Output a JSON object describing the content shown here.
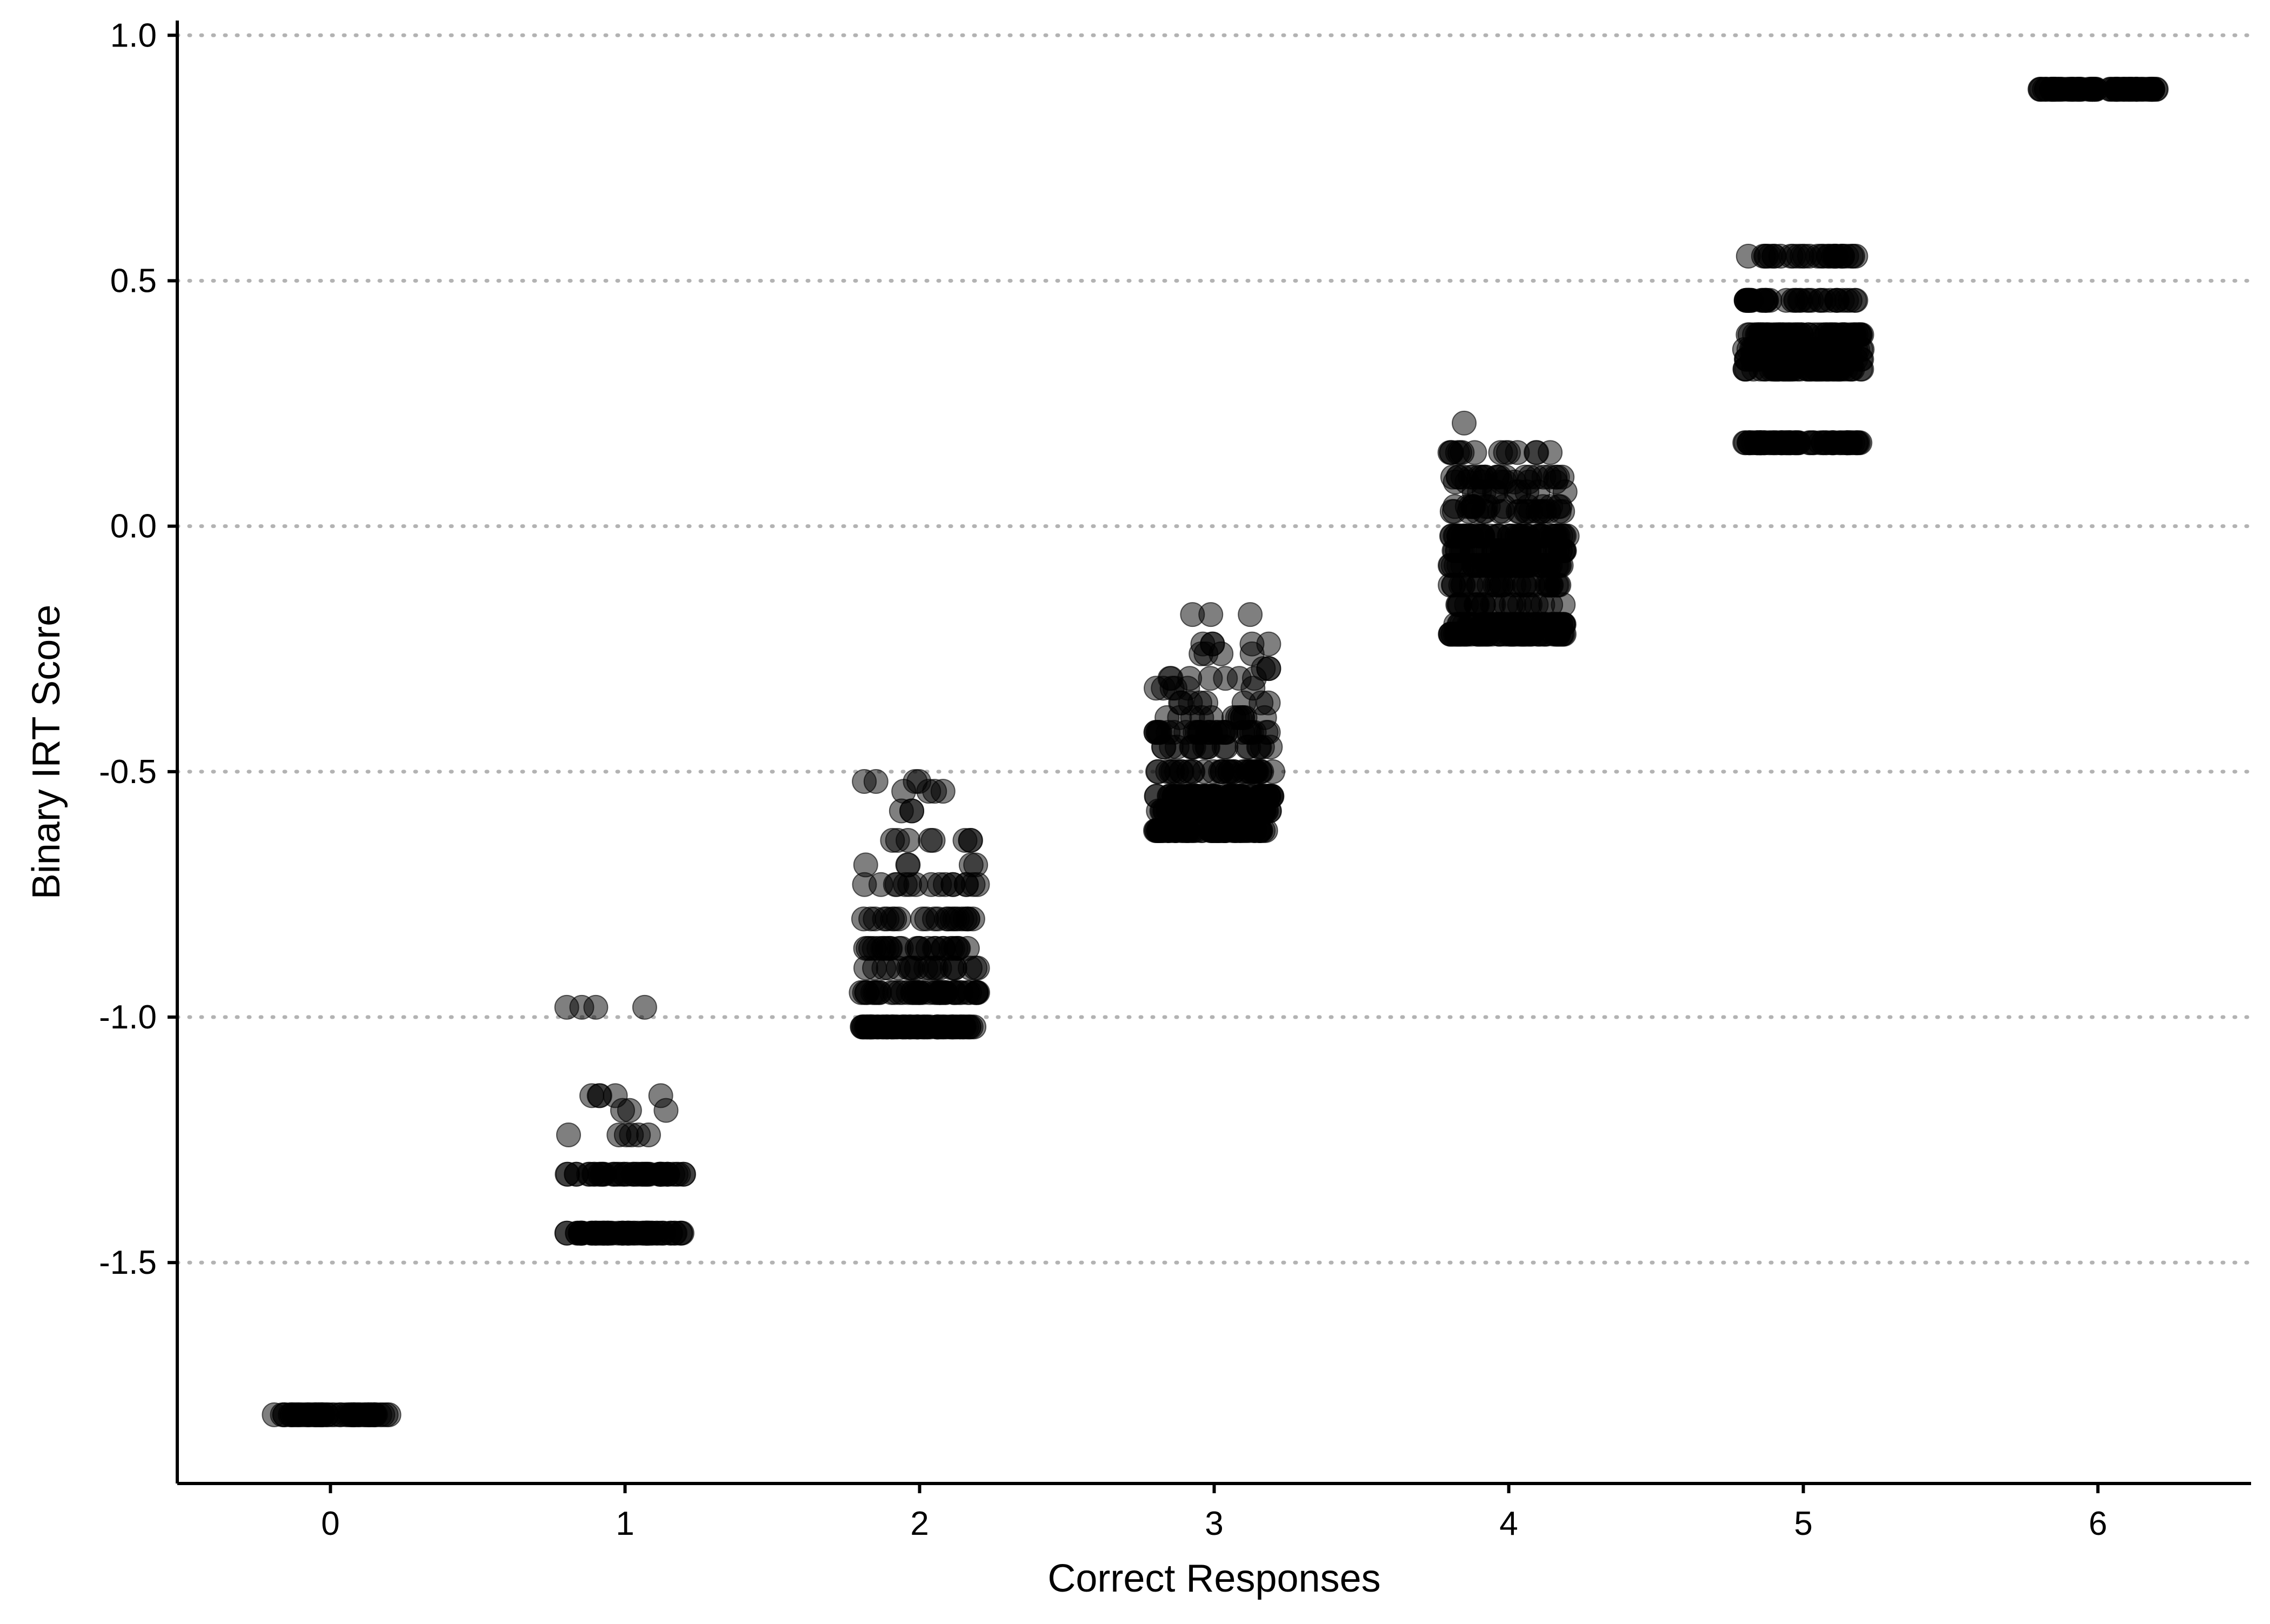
{
  "chart_data": {
    "type": "scatter",
    "title": "",
    "xlabel": "Correct Responses",
    "ylabel": "Binary IRT Score",
    "xlim": [
      -0.52,
      6.52
    ],
    "ylim": [
      -1.95,
      1.03
    ],
    "x_ticks": [
      0,
      1,
      2,
      3,
      4,
      5,
      6
    ],
    "x_tick_labels": [
      "0",
      "1",
      "2",
      "3",
      "4",
      "5",
      "6"
    ],
    "y_ticks": [
      -1.5,
      -1.0,
      -0.5,
      0.0,
      0.5,
      1.0
    ],
    "y_tick_labels": [
      "-1.5",
      "-1.0",
      "-0.5",
      "0.0",
      "0.5",
      "1.0"
    ],
    "grid": {
      "horizontal": true,
      "vertical": false,
      "style": "dotted"
    },
    "point_color": "#000000",
    "point_opacity": 0.5,
    "jitter_width": 0.2,
    "groups": [
      {
        "x": 0,
        "levels": [
          {
            "y": -1.81,
            "count": 60
          }
        ]
      },
      {
        "x": 1,
        "levels": [
          {
            "y": -0.98,
            "count": 4
          },
          {
            "y": -1.16,
            "count": 5
          },
          {
            "y": -1.19,
            "count": 3
          },
          {
            "y": -1.24,
            "count": 6
          },
          {
            "y": -1.32,
            "count": 45
          },
          {
            "y": -1.44,
            "count": 70
          }
        ]
      },
      {
        "x": 2,
        "levels": [
          {
            "y": -0.52,
            "count": 4
          },
          {
            "y": -0.54,
            "count": 4
          },
          {
            "y": -0.58,
            "count": 3
          },
          {
            "y": -0.64,
            "count": 8
          },
          {
            "y": -0.69,
            "count": 5
          },
          {
            "y": -0.73,
            "count": 16
          },
          {
            "y": -0.8,
            "count": 22
          },
          {
            "y": -0.86,
            "count": 26
          },
          {
            "y": -0.9,
            "count": 20
          },
          {
            "y": -0.95,
            "count": 45
          },
          {
            "y": -1.02,
            "count": 80
          }
        ]
      },
      {
        "x": 3,
        "levels": [
          {
            "y": -0.18,
            "count": 3
          },
          {
            "y": -0.24,
            "count": 5
          },
          {
            "y": -0.26,
            "count": 4
          },
          {
            "y": -0.29,
            "count": 3
          },
          {
            "y": -0.31,
            "count": 7
          },
          {
            "y": -0.33,
            "count": 6
          },
          {
            "y": -0.36,
            "count": 8
          },
          {
            "y": -0.39,
            "count": 12
          },
          {
            "y": -0.42,
            "count": 30
          },
          {
            "y": -0.45,
            "count": 18
          },
          {
            "y": -0.5,
            "count": 35
          },
          {
            "y": -0.55,
            "count": 70
          },
          {
            "y": -0.58,
            "count": 70
          },
          {
            "y": -0.62,
            "count": 80
          }
        ]
      },
      {
        "x": 4,
        "levels": [
          {
            "y": 0.21,
            "count": 1
          },
          {
            "y": 0.15,
            "count": 14
          },
          {
            "y": 0.1,
            "count": 22
          },
          {
            "y": 0.09,
            "count": 8
          },
          {
            "y": 0.07,
            "count": 10
          },
          {
            "y": 0.04,
            "count": 14
          },
          {
            "y": 0.03,
            "count": 20
          },
          {
            "y": -0.02,
            "count": 50
          },
          {
            "y": -0.05,
            "count": 50
          },
          {
            "y": -0.08,
            "count": 55
          },
          {
            "y": -0.12,
            "count": 30
          },
          {
            "y": -0.16,
            "count": 22
          },
          {
            "y": -0.2,
            "count": 60
          },
          {
            "y": -0.22,
            "count": 70
          }
        ]
      },
      {
        "x": 5,
        "levels": [
          {
            "y": 0.55,
            "count": 30
          },
          {
            "y": 0.46,
            "count": 40
          },
          {
            "y": 0.39,
            "count": 55
          },
          {
            "y": 0.36,
            "count": 55
          },
          {
            "y": 0.34,
            "count": 60
          },
          {
            "y": 0.32,
            "count": 60
          },
          {
            "y": 0.17,
            "count": 80
          }
        ]
      },
      {
        "x": 6,
        "levels": [
          {
            "y": 0.89,
            "count": 80
          }
        ]
      }
    ]
  }
}
